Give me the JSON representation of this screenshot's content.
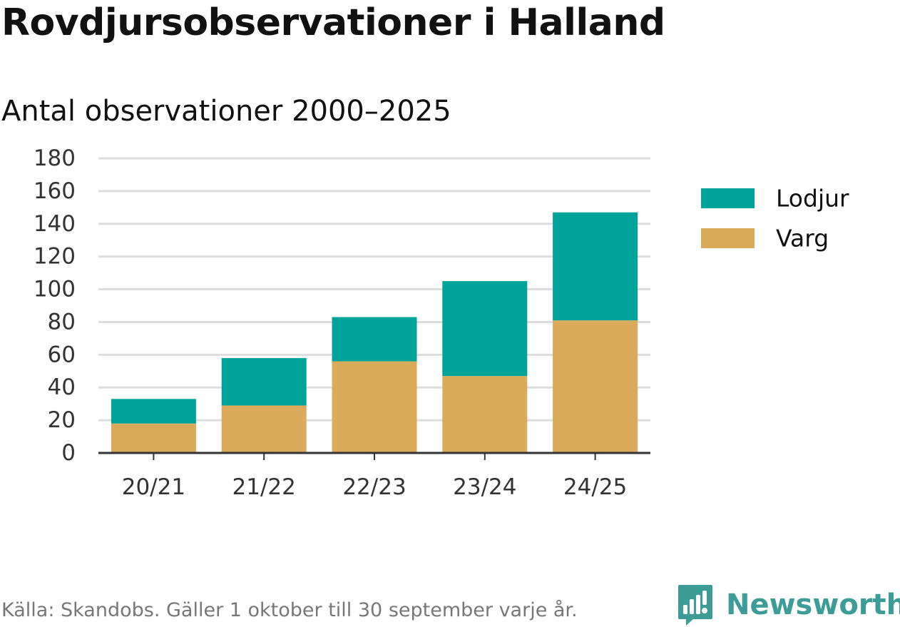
{
  "title": "Rovdjursobservationer i Halland",
  "subtitle": "Antal observationer 2000–2025",
  "chart_data": {
    "type": "bar",
    "stacked": true,
    "categories": [
      "20/21",
      "21/22",
      "22/23",
      "23/24",
      "24/25"
    ],
    "series": [
      {
        "name": "Varg",
        "color": "#d9ab5a",
        "values": [
          18,
          29,
          56,
          47,
          81
        ]
      },
      {
        "name": "Lodjur",
        "color": "#00a39a",
        "values": [
          15,
          29,
          27,
          58,
          66
        ]
      }
    ],
    "ylim": [
      0,
      180
    ],
    "yticks": [
      0,
      20,
      40,
      60,
      80,
      100,
      120,
      140,
      160,
      180
    ],
    "grid": true,
    "legend_position": "right",
    "legend_order": [
      "Lodjur",
      "Varg"
    ],
    "xlabel": "",
    "ylabel": ""
  },
  "footer": {
    "source": "Källa: Skandobs. Gäller 1 oktober till 30 september varje år.",
    "brand": "Newsworthy",
    "brand_icon": "newsworthy-logo-icon",
    "brand_color": "#3e9c98"
  }
}
